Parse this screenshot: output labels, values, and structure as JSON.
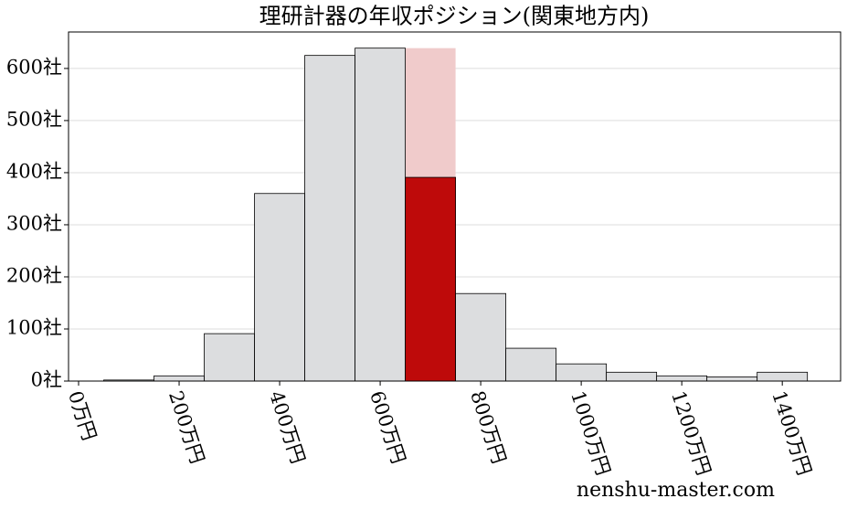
{
  "chart_data": {
    "type": "histogram",
    "title": "理研計器の年収ポジション(関東地方内)",
    "bins": [
      50,
      150,
      250,
      350,
      450,
      550,
      650,
      750,
      850,
      950,
      1050,
      1150,
      1250,
      1350,
      1450
    ],
    "values": [
      2,
      10,
      91,
      360,
      625,
      639,
      391,
      168,
      63,
      33,
      17,
      10,
      8,
      17
    ],
    "colors": [
      "#dcdddf",
      "#dcdddf",
      "#dcdddf",
      "#dcdddf",
      "#dcdddf",
      "#dcdddf",
      "#be0a0a",
      "#dcdddf",
      "#dcdddf",
      "#dcdddf",
      "#dcdddf",
      "#dcdddf",
      "#dcdddf",
      "#dcdddf"
    ],
    "band": {
      "x": [
        650,
        750
      ],
      "y": 639,
      "color": "#f0cbcb"
    },
    "xlim": [
      -20,
      1516
    ],
    "ylim": [
      0,
      670
    ],
    "xticks": [
      {
        "value": 0,
        "label": "0万円"
      },
      {
        "value": 200,
        "label": "200万円"
      },
      {
        "value": 400,
        "label": "400万円"
      },
      {
        "value": 600,
        "label": "600万円"
      },
      {
        "value": 800,
        "label": "800万円"
      },
      {
        "value": 1000,
        "label": "1000万円"
      },
      {
        "value": 1200,
        "label": "1200万円"
      },
      {
        "value": 1400,
        "label": "1400万円"
      }
    ],
    "yticks": [
      {
        "value": 0,
        "label": "0社"
      },
      {
        "value": 100,
        "label": "100社"
      },
      {
        "value": 200,
        "label": "200社"
      },
      {
        "value": 300,
        "label": "300社"
      },
      {
        "value": 400,
        "label": "400社"
      },
      {
        "value": 500,
        "label": "500社"
      },
      {
        "value": 600,
        "label": "600社"
      }
    ],
    "grid": true,
    "watermark": "nenshu-master.com"
  }
}
